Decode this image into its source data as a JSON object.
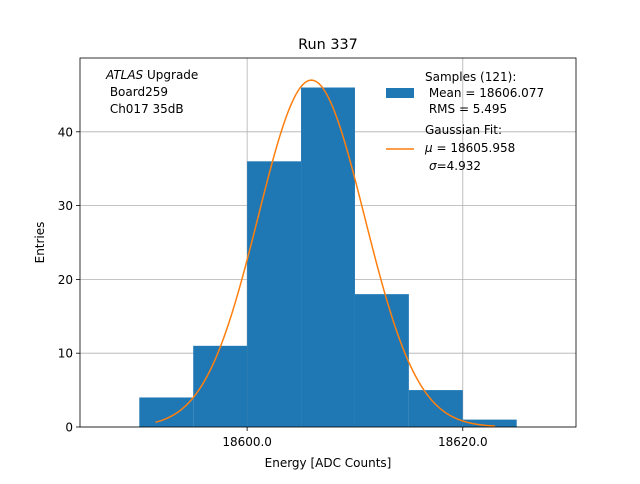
{
  "chart_data": {
    "type": "bar",
    "title": "Run 337",
    "xlabel": "Energy [ADC Counts]",
    "ylabel": "Entries",
    "xlim": [
      18584.5,
      18630.5
    ],
    "ylim": [
      0,
      50
    ],
    "grid": true,
    "x_ticks": [
      18600.0,
      18620.0
    ],
    "x_tick_labels": [
      "18600.0",
      "18620.0"
    ],
    "y_ticks": [
      0,
      10,
      20,
      30,
      40
    ],
    "y_tick_labels": [
      "0",
      "10",
      "20",
      "30",
      "40"
    ],
    "bin_edges": [
      18590,
      18595,
      18600,
      18605,
      18610,
      18615,
      18620,
      18625
    ],
    "counts": [
      4,
      11,
      36,
      46,
      18,
      5,
      1
    ],
    "fit": {
      "type": "gaussian",
      "mu": 18605.958,
      "sigma": 4.932,
      "amplitude": 47.0,
      "x_range": [
        18591.5,
        18623.0
      ]
    },
    "annotation": {
      "italic": "ATLAS",
      "line1_rest": " Upgrade",
      "line2": " Board259",
      "line3": " Ch017 35dB"
    },
    "legend": {
      "placement": "top-right",
      "samples": {
        "label": "Samples (121):",
        "mean": " Mean = 18606.077",
        "rms": " RMS = 5.495",
        "color": "#1f77b4"
      },
      "fit": {
        "label": "Gaussian Fit:",
        "mu_symbol": "μ",
        "mu_value": " = 18605.958",
        "sigma_symbol": "σ",
        "sigma_value": "=4.932",
        "color": "#ff7f0e"
      }
    }
  }
}
